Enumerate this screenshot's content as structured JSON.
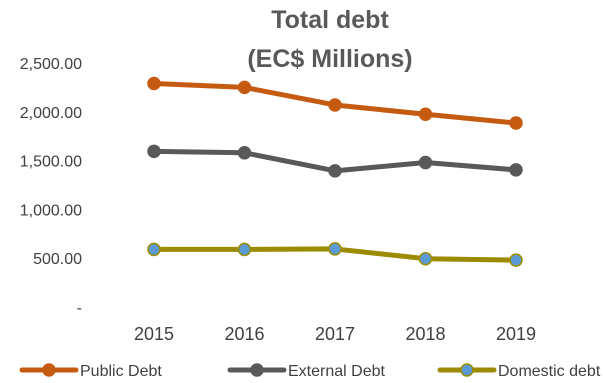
{
  "chart_data": {
    "type": "line",
    "title_lines": [
      "Total debt",
      "(EC$ Millions)"
    ],
    "categories": [
      "2015",
      "2016",
      "2017",
      "2018",
      "2019"
    ],
    "y_ticks": [
      "-",
      "500.00",
      "1,000.00",
      "1,500.00",
      "2,000.00",
      "2,500.00"
    ],
    "ylim": [
      0,
      2500
    ],
    "grid": false,
    "legend_position": "bottom",
    "series": [
      {
        "name": "Public Debt",
        "values": [
          2290,
          2250,
          2070,
          1975,
          1885
        ],
        "color": "#C55A11",
        "marker_fill": "#C55A11"
      },
      {
        "name": "External Debt",
        "values": [
          1595,
          1580,
          1395,
          1480,
          1405
        ],
        "color": "#595959",
        "marker_fill": "#595959"
      },
      {
        "name": "Domestic debt",
        "values": [
          590,
          590,
          595,
          495,
          480
        ],
        "color": "#9C8A00",
        "marker_fill": "#5B9BD5"
      }
    ]
  }
}
